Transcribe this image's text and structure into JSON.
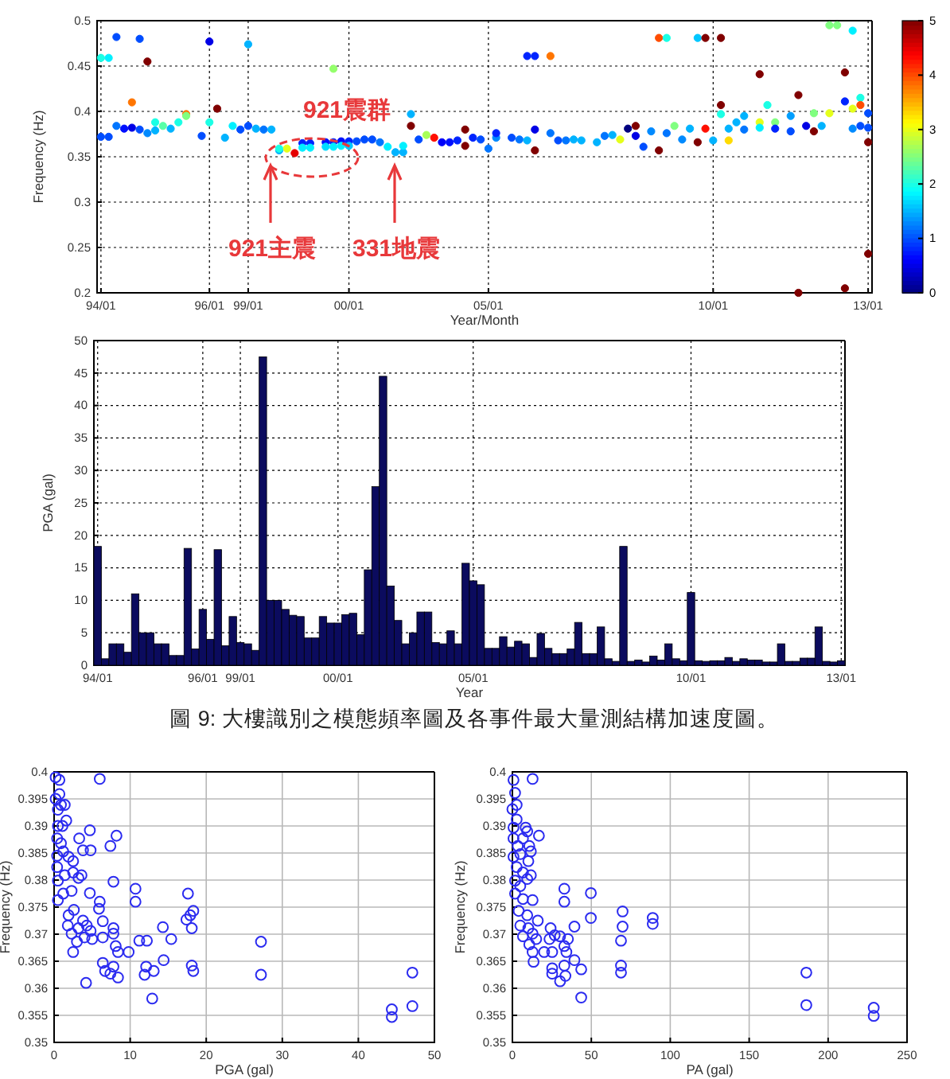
{
  "chart_data": [
    {
      "type": "scatter",
      "xlabel": "Year/Month",
      "ylabel": "Frequency (Hz)",
      "categories": [
        "94/01",
        null,
        null,
        null,
        null,
        null,
        null,
        null,
        null,
        null,
        null,
        null,
        null,
        null,
        "96/01",
        null,
        null,
        null,
        null,
        "99/01",
        null,
        null,
        null,
        null,
        null,
        null,
        null,
        null,
        null,
        null,
        null,
        null,
        "00/01",
        null,
        null,
        null,
        null,
        null,
        null,
        null,
        null,
        null,
        null,
        null,
        null,
        null,
        null,
        null,
        null,
        null,
        "05/01",
        null,
        null,
        null,
        null,
        null,
        null,
        null,
        null,
        null,
        null,
        null,
        null,
        null,
        null,
        null,
        null,
        null,
        null,
        null,
        null,
        null,
        null,
        null,
        null,
        null,
        null,
        null,
        null,
        "10/01",
        null,
        null,
        null,
        null,
        null,
        null,
        null,
        null,
        null,
        null,
        null,
        null,
        null,
        null,
        null,
        null,
        null,
        null,
        null,
        "13/01"
      ],
      "ylim": [
        0.2,
        0.5
      ],
      "yticks": [
        0.2,
        0.25,
        0.3,
        0.35,
        0.4,
        0.45,
        0.5
      ],
      "clim": [
        0,
        5
      ],
      "cticks": [
        0,
        1,
        2,
        3,
        4,
        5
      ],
      "grid": true,
      "marker": "circle",
      "series": [
        {
          "values": [
            0.459,
            0.459,
            0.384,
            0.381,
            0.382,
            0.48,
            0.376,
            0.379,
            0.384,
            0.381,
            0.388,
            0.397,
            null,
            0.373,
            0.477,
            0.403,
            0.371,
            0.384,
            0.38,
            0.384,
            0.381,
            0.38,
            0.38,
            0.357,
            0.359,
            0.354,
            0.365,
            0.365,
            null,
            0.366,
            0.366,
            0.367,
            0.367,
            0.367,
            0.369,
            0.369,
            0.366,
            0.361,
            0.355,
            0.355,
            0.384,
            0.369,
            0.374,
            0.371,
            0.366,
            0.366,
            0.368,
            0.362,
            0.371,
            0.369,
            0.359,
            0.371,
            null,
            0.371,
            0.369,
            0.461,
            0.461,
            null,
            0.461,
            0.368,
            0.368,
            0.369,
            0.368,
            null,
            0.366,
            0.373,
            0.374,
            0.369,
            0.381,
            0.384,
            0.361,
            0.378,
            0.481,
            0.376,
            0.384,
            0.369,
            0.381,
            0.481,
            0.481,
            0.368,
            0.481,
            0.368,
            0.388,
            0.38,
            null,
            0.441,
            0.407,
            0.388,
            null,
            0.378,
            0.418,
            0.384,
            0.378,
            0.384,
            0.495,
            0.495,
            0.205,
            0.403,
            0.415,
            0.243
          ],
          "cvalues": [
            2,
            1.8,
            1.2,
            0.7,
            0.5,
            1,
            1.3,
            1.5,
            2.3,
            1.5,
            2,
            3.8,
            null,
            1,
            0.5,
            5,
            1.5,
            1.8,
            1,
            1,
            1.5,
            1.2,
            1.5,
            1.5,
            3,
            4.5,
            0.8,
            0.8,
            null,
            0.7,
            0.8,
            0.7,
            0.8,
            1,
            1,
            1,
            1.2,
            1.8,
            1.5,
            1.5,
            5,
            1,
            2.7,
            4.3,
            0.6,
            0.7,
            0.8,
            5,
            0.8,
            1,
            1.2,
            1.3,
            null,
            1,
            1.2,
            0.8,
            0.8,
            null,
            3.8,
            1,
            1.2,
            1.5,
            1.5,
            null,
            1.5,
            1.2,
            1.5,
            3,
            0,
            5,
            1,
            1.3,
            4,
            1.2,
            2.5,
            1.3,
            1.5,
            1.6,
            5,
            1.5,
            5,
            3.3,
            1.5,
            1.2,
            null,
            5,
            2,
            2.5,
            null,
            1,
            5,
            0.5,
            5,
            1.5,
            2.5,
            2.5,
            5,
            3,
            2,
            5
          ],
          "colors": [
            "#1affe6",
            "#00f0ff",
            "#0075ff",
            "#000fff",
            "#0000e6",
            "#004dff",
            "#008aff",
            "#00b3ff",
            "#57ffa8",
            "#00b3ff",
            "#1affe6",
            "#ff7500",
            null,
            "#004dff",
            "#0000e6",
            "#800000",
            "#00b3ff",
            "#00f0ff",
            "#004dff",
            "#004dff",
            "#00b3ff",
            "#0075ff",
            "#00b3ff",
            "#00b3ff",
            "#e6ff1a",
            "#e60000",
            "#0024ff",
            "#0024ff",
            null,
            "#000fff",
            "#0024ff",
            "#000fff",
            "#0024ff",
            "#004dff",
            "#004dff",
            "#004dff",
            "#0075ff",
            "#00f0ff",
            "#00b3ff",
            "#00b3ff",
            "#800000",
            "#004dff",
            "#a8ff57",
            "#ff0f00",
            "#0000fa",
            "#000fff",
            "#0024ff",
            "#800000",
            "#0024ff",
            "#004dff",
            "#0075ff",
            "#008aff",
            null,
            "#004dff",
            "#0075ff",
            "#0024ff",
            "#0024ff",
            null,
            "#ff7500",
            "#004dff",
            "#0075ff",
            "#00b3ff",
            "#00b3ff",
            null,
            "#00b3ff",
            "#0075ff",
            "#00b3ff",
            "#e6ff1a",
            "#000080",
            "#800000",
            "#004dff",
            "#008aff",
            "#ff4d00",
            "#0075ff",
            "#80ff80",
            "#008aff",
            "#00b3ff",
            "#00c7ff",
            "#800000",
            "#00b3ff",
            "#800000",
            "#ffdb00",
            "#00b3ff",
            "#0075ff",
            null,
            "#800000",
            "#1affe6",
            "#80ff80",
            null,
            "#004dff",
            "#800000",
            "#0000e6",
            "#800000",
            "#00b3ff",
            "#80ff80",
            "#80ff80",
            "#800000",
            "#e6ff1a",
            "#1affe6",
            "#800000"
          ]
        },
        {
          "values": [
            0.372,
            0.372,
            0.482,
            null,
            0.41,
            0.38,
            0.455,
            0.388,
            null,
            null,
            null,
            0.395,
            null,
            null,
            0.388,
            null,
            null,
            null,
            null,
            0.474,
            null,
            null,
            null,
            0.359,
            null,
            null,
            0.36,
            0.36,
            null,
            0.361,
            0.361,
            0.362,
            0.362,
            null,
            null,
            null,
            null,
            null,
            null,
            0.362,
            0.397,
            null,
            null,
            null,
            null,
            null,
            null,
            0.38,
            null,
            null,
            null,
            0.376,
            null,
            null,
            null,
            0.368,
            0.38,
            null,
            0.376,
            null,
            null,
            null,
            null,
            null,
            null,
            null,
            null,
            null,
            null,
            0.373,
            null,
            null,
            0.357,
            0.481,
            null,
            null,
            null,
            0.366,
            0.381,
            null,
            0.407,
            0.381,
            null,
            0.395,
            null,
            0.388,
            null,
            0.381,
            null,
            0.395,
            0.2,
            null,
            0.398,
            null,
            0.398,
            null,
            0.443,
            0.489,
            0.384,
            0.398
          ],
          "cvalues": [
            1,
            1,
            1,
            null,
            3.8,
            1,
            5,
            2,
            null,
            null,
            null,
            2.5,
            null,
            null,
            2,
            null,
            null,
            null,
            null,
            1.5,
            null,
            null,
            null,
            2,
            null,
            null,
            1.8,
            1.8,
            null,
            1.7,
            1.8,
            1.8,
            1.6,
            null,
            null,
            null,
            null,
            null,
            null,
            1.8,
            1.5,
            null,
            null,
            null,
            null,
            null,
            null,
            5,
            null,
            null,
            null,
            0.8,
            null,
            null,
            null,
            1.5,
            0.5,
            null,
            1.2,
            null,
            null,
            null,
            null,
            null,
            null,
            null,
            null,
            null,
            null,
            0.5,
            null,
            null,
            5,
            2,
            null,
            null,
            null,
            5,
            4.3,
            null,
            5,
            1.5,
            null,
            1.5,
            null,
            3,
            null,
            0.8,
            null,
            1.4,
            5,
            null,
            2.5,
            null,
            3,
            null,
            5,
            1.8,
            1,
            1
          ],
          "colors": [
            "#004dff",
            "#004dff",
            "#004dff",
            null,
            "#ff7500",
            "#004dff",
            "#800000",
            "#1affe6",
            null,
            null,
            null,
            "#80ff80",
            null,
            null,
            "#1affe6",
            null,
            null,
            null,
            null,
            "#00b3ff",
            null,
            null,
            null,
            "#1affe6",
            null,
            null,
            "#00f0ff",
            "#00f0ff",
            null,
            "#00dbff",
            "#00f0ff",
            "#00f0ff",
            "#00c7ff",
            null,
            null,
            null,
            null,
            null,
            null,
            "#00f0ff",
            "#00b3ff",
            null,
            null,
            null,
            null,
            null,
            null,
            "#800000",
            null,
            null,
            null,
            "#0024ff",
            null,
            null,
            null,
            "#00b3ff",
            "#0000e6",
            null,
            "#0075ff",
            null,
            null,
            null,
            null,
            null,
            null,
            null,
            null,
            null,
            null,
            "#0000e6",
            null,
            null,
            "#800000",
            "#1affe6",
            null,
            null,
            null,
            "#800000",
            "#ff0f00",
            null,
            "#800000",
            "#00b3ff",
            null,
            "#00b3ff",
            null,
            "#e6ff1a",
            null,
            "#0024ff",
            null,
            "#009eff",
            "#800000",
            null,
            "#80ff80",
            null,
            "#e6ff1a",
            null,
            "#800000",
            "#00f0ff",
            "#004dff",
            "#004dff"
          ]
        },
        {
          "values": [
            null,
            null,
            null,
            null,
            null,
            null,
            null,
            null,
            null,
            null,
            null,
            null,
            null,
            null,
            null,
            null,
            null,
            null,
            null,
            null,
            null,
            null,
            null,
            null,
            null,
            null,
            null,
            null,
            null,
            null,
            0.447,
            null,
            null,
            null,
            null,
            null,
            null,
            null,
            null,
            null,
            null,
            null,
            null,
            null,
            null,
            null,
            null,
            null,
            null,
            null,
            null,
            null,
            null,
            null,
            null,
            null,
            0.357,
            null,
            null,
            null,
            null,
            null,
            null,
            null,
            null,
            null,
            null,
            null,
            null,
            null,
            null,
            null,
            null,
            null,
            null,
            null,
            null,
            null,
            null,
            null,
            0.397,
            null,
            null,
            null,
            null,
            0.382,
            null,
            null,
            null,
            null,
            null,
            null,
            null,
            null,
            null,
            null,
            0.411,
            0.381,
            0.407,
            0.382
          ],
          "cvalues": [
            null,
            null,
            null,
            null,
            null,
            null,
            null,
            null,
            null,
            null,
            null,
            null,
            null,
            null,
            null,
            null,
            null,
            null,
            null,
            null,
            null,
            null,
            null,
            null,
            null,
            null,
            null,
            null,
            null,
            null,
            2.6,
            null,
            null,
            null,
            null,
            null,
            null,
            null,
            null,
            null,
            null,
            null,
            null,
            null,
            null,
            null,
            null,
            null,
            null,
            null,
            null,
            null,
            null,
            null,
            null,
            null,
            5,
            null,
            null,
            null,
            null,
            null,
            null,
            null,
            null,
            null,
            null,
            null,
            null,
            null,
            null,
            null,
            null,
            null,
            null,
            null,
            null,
            null,
            null,
            null,
            2,
            null,
            null,
            null,
            null,
            1.8,
            null,
            null,
            null,
            null,
            null,
            null,
            null,
            null,
            null,
            null,
            0.8,
            1.3,
            4,
            1
          ],
          "colors": [
            null,
            null,
            null,
            null,
            null,
            null,
            null,
            null,
            null,
            null,
            null,
            null,
            null,
            null,
            null,
            null,
            null,
            null,
            null,
            null,
            null,
            null,
            null,
            null,
            null,
            null,
            null,
            null,
            null,
            null,
            "#94ff6b",
            null,
            null,
            null,
            null,
            null,
            null,
            null,
            null,
            null,
            null,
            null,
            null,
            null,
            null,
            null,
            null,
            null,
            null,
            null,
            null,
            null,
            null,
            null,
            null,
            null,
            "#800000",
            null,
            null,
            null,
            null,
            null,
            null,
            null,
            null,
            null,
            null,
            null,
            null,
            null,
            null,
            null,
            null,
            null,
            null,
            null,
            null,
            null,
            null,
            null,
            "#1affe6",
            null,
            null,
            null,
            null,
            "#00f0ff",
            null,
            null,
            null,
            null,
            null,
            null,
            null,
            null,
            null,
            null,
            "#0024ff",
            "#008aff",
            "#ff4d00",
            "#004dff"
          ]
        },
        {
          "values": [
            null,
            null,
            null,
            null,
            null,
            null,
            null,
            null,
            null,
            null,
            null,
            null,
            null,
            null,
            null,
            null,
            null,
            null,
            null,
            null,
            null,
            null,
            null,
            null,
            null,
            null,
            null,
            null,
            null,
            null,
            null,
            null,
            null,
            null,
            null,
            null,
            null,
            null,
            null,
            null,
            null,
            null,
            null,
            null,
            null,
            null,
            null,
            null,
            null,
            null,
            null,
            null,
            null,
            null,
            null,
            null,
            null,
            null,
            null,
            null,
            null,
            null,
            null,
            null,
            null,
            null,
            null,
            null,
            null,
            null,
            null,
            null,
            null,
            null,
            null,
            null,
            null,
            null,
            null,
            null,
            null,
            null,
            null,
            null,
            null,
            null,
            null,
            null,
            null,
            null,
            null,
            null,
            null,
            null,
            null,
            null,
            null,
            null,
            null,
            0.366
          ],
          "cvalues": [
            null,
            null,
            null,
            null,
            null,
            null,
            null,
            null,
            null,
            null,
            null,
            null,
            null,
            null,
            null,
            null,
            null,
            null,
            null,
            null,
            null,
            null,
            null,
            null,
            null,
            null,
            null,
            null,
            null,
            null,
            null,
            null,
            null,
            null,
            null,
            null,
            null,
            null,
            null,
            null,
            null,
            null,
            null,
            null,
            null,
            null,
            null,
            null,
            null,
            null,
            null,
            null,
            null,
            null,
            null,
            null,
            null,
            null,
            null,
            null,
            null,
            null,
            null,
            null,
            null,
            null,
            null,
            null,
            null,
            null,
            null,
            null,
            null,
            null,
            null,
            null,
            null,
            null,
            null,
            null,
            null,
            null,
            null,
            null,
            null,
            null,
            null,
            null,
            null,
            null,
            null,
            null,
            null,
            null,
            null,
            null,
            null,
            null,
            null,
            5
          ],
          "colors": [
            null,
            null,
            null,
            null,
            null,
            null,
            null,
            null,
            null,
            null,
            null,
            null,
            null,
            null,
            null,
            null,
            null,
            null,
            null,
            null,
            null,
            null,
            null,
            null,
            null,
            null,
            null,
            null,
            null,
            null,
            null,
            null,
            null,
            null,
            null,
            null,
            null,
            null,
            null,
            null,
            null,
            null,
            null,
            null,
            null,
            null,
            null,
            null,
            null,
            null,
            null,
            null,
            null,
            null,
            null,
            null,
            null,
            null,
            null,
            null,
            null,
            null,
            null,
            null,
            null,
            null,
            null,
            null,
            null,
            null,
            null,
            null,
            null,
            null,
            null,
            null,
            null,
            null,
            null,
            null,
            null,
            null,
            null,
            null,
            null,
            null,
            null,
            null,
            null,
            null,
            null,
            null,
            null,
            null,
            null,
            null,
            null,
            null,
            null,
            "#800000"
          ]
        }
      ],
      "annotations": [
        "921震群",
        "921主震",
        "331地震"
      ]
    },
    {
      "type": "bar",
      "xlabel": "Year",
      "ylabel": "PGA (gal)",
      "color": "#0b0b5e",
      "categories": [
        "94/01",
        null,
        null,
        null,
        null,
        null,
        null,
        null,
        null,
        null,
        null,
        null,
        null,
        null,
        "96/01",
        null,
        null,
        null,
        null,
        "99/01",
        null,
        null,
        null,
        null,
        null,
        null,
        null,
        null,
        null,
        null,
        null,
        null,
        "00/01",
        null,
        null,
        null,
        null,
        null,
        null,
        null,
        null,
        null,
        null,
        null,
        null,
        null,
        null,
        null,
        null,
        null,
        "05/01",
        null,
        null,
        null,
        null,
        null,
        null,
        null,
        null,
        null,
        null,
        null,
        null,
        null,
        null,
        null,
        null,
        null,
        null,
        null,
        null,
        null,
        null,
        null,
        null,
        null,
        null,
        null,
        null,
        "10/01",
        null,
        null,
        null,
        null,
        null,
        null,
        null,
        null,
        null,
        null,
        null,
        null,
        null,
        null,
        null,
        null,
        null,
        null,
        null,
        "13/01"
      ],
      "ylim": [
        0,
        50
      ],
      "yticks": [
        0,
        5,
        10,
        15,
        20,
        25,
        30,
        35,
        40,
        45,
        50
      ],
      "grid": true,
      "values": [
        18.3,
        1,
        3.3,
        3.3,
        2,
        11,
        5,
        5,
        3.3,
        3.3,
        1.5,
        1.5,
        18,
        2.5,
        8.6,
        4,
        17.8,
        3,
        7.5,
        3.5,
        3.3,
        2.3,
        47.5,
        10,
        10,
        8.6,
        7.7,
        7.5,
        4.2,
        4.2,
        7.5,
        6.5,
        6.5,
        7.8,
        8,
        4.7,
        14.7,
        27.5,
        44.5,
        12.2,
        6.9,
        3.3,
        5,
        8.2,
        8.2,
        3.5,
        3.3,
        5.3,
        3.3,
        15.7,
        13,
        12.4,
        2.6,
        2.6,
        4.4,
        2.8,
        3.7,
        3.3,
        1.2,
        4.9,
        2.6,
        1.8,
        1.8,
        2.5,
        6.6,
        1.8,
        1.8,
        5.9,
        1,
        0.6,
        18.3,
        0.6,
        0.8,
        0.5,
        1.4,
        0.8,
        3.3,
        1,
        0.7,
        11.2,
        0.7,
        0.6,
        0.7,
        0.7,
        1.2,
        0.6,
        1,
        0.8,
        0.8,
        0.5,
        0.5,
        3.3,
        0.6,
        0.6,
        1.1,
        1.1,
        5.9,
        0.6,
        0.5,
        0.7
      ],
      "annotations": [
        "圖 9: 大樓識別之模態頻率圖及各事件最大量測結構加速度圖。"
      ]
    },
    {
      "type": "scatter",
      "xlabel": "PGA (gal)",
      "ylabel": "Frequency (Hz)",
      "color": "#2b2bf0",
      "marker": "circle",
      "grid": true,
      "xlim": [
        0,
        50
      ],
      "xticks": [
        0,
        10,
        20,
        30,
        40,
        50
      ],
      "ylim": [
        0.35,
        0.4
      ],
      "yticks": [
        0.35,
        0.355,
        0.36,
        0.365,
        0.37,
        0.375,
        0.38,
        0.385,
        0.39,
        0.395,
        0.4
      ],
      "x": [
        0.2,
        0.7,
        6,
        0.2,
        0.7,
        0.9,
        1.4,
        0.5,
        0.5,
        1.1,
        1.6,
        0.4,
        0.9,
        0.4,
        1.2,
        1.9,
        2.5,
        3.3,
        4.7,
        4.8,
        3.8,
        7.4,
        8.2,
        0.4,
        0.5,
        1.4,
        2.5,
        3.2,
        3.6,
        0.5,
        1.2,
        2.3,
        4.7,
        7.8,
        6,
        5.9,
        10.7,
        10.7,
        1.9,
        2.6,
        1.8,
        2.3,
        3.2,
        3.8,
        4.3,
        4.8,
        4,
        3,
        2.5,
        5,
        6.4,
        6.4,
        7.8,
        7.8,
        8.1,
        8.4,
        9.8,
        6.4,
        6.7,
        7.8,
        7.4,
        8.4,
        4.2,
        11.2,
        12.2,
        12.1,
        11.9,
        13.1,
        12.9,
        14.3,
        14.4,
        15.4,
        17.4,
        17.6,
        17.9,
        18.1,
        18.1,
        18.3,
        18.3,
        27.2,
        27.2,
        44.4,
        44.4,
        47.1,
        47.1
      ],
      "values": [
        0.399,
        0.3985,
        0.3987,
        0.395,
        0.3959,
        0.3939,
        0.3939,
        0.393,
        0.39,
        0.39,
        0.391,
        0.3877,
        0.3868,
        0.3845,
        0.3853,
        0.3843,
        0.3835,
        0.3877,
        0.3892,
        0.3855,
        0.3855,
        0.3863,
        0.3882,
        0.3824,
        0.3799,
        0.3809,
        0.3814,
        0.3804,
        0.3809,
        0.3763,
        0.3775,
        0.378,
        0.3776,
        0.3797,
        0.376,
        0.3747,
        0.3784,
        0.376,
        0.3735,
        0.3745,
        0.3716,
        0.3701,
        0.3711,
        0.3725,
        0.3716,
        0.3706,
        0.3694,
        0.3686,
        0.3667,
        0.3691,
        0.3724,
        0.3694,
        0.3711,
        0.3701,
        0.3678,
        0.3667,
        0.3667,
        0.3647,
        0.3632,
        0.364,
        0.3627,
        0.362,
        0.361,
        0.3688,
        0.3688,
        0.364,
        0.3625,
        0.3632,
        0.3581,
        0.3713,
        0.3652,
        0.3691,
        0.3727,
        0.3775,
        0.3735,
        0.3711,
        0.3642,
        0.3632,
        0.3743,
        0.3686,
        0.3625,
        0.3561,
        0.3547,
        0.3629,
        0.3567
      ]
    },
    {
      "type": "scatter",
      "xlabel": "PA (gal)",
      "ylabel": "Frequency (Hz)",
      "color": "#2b2bf0",
      "marker": "circle",
      "grid": true,
      "xlim": [
        0,
        250
      ],
      "xticks": [
        0,
        50,
        100,
        150,
        200,
        250
      ],
      "ylim": [
        0.35,
        0.4
      ],
      "yticks": [
        0.35,
        0.355,
        0.36,
        0.365,
        0.37,
        0.375,
        0.38,
        0.385,
        0.39,
        0.395,
        0.4
      ],
      "x": [
        0.7,
        12.8,
        1.7,
        2.7,
        0,
        2.7,
        0.7,
        8.4,
        9.4,
        16.8,
        0.7,
        3.4,
        6.7,
        10.7,
        11.7,
        0.7,
        5,
        10.1,
        2.7,
        6.7,
        11.7,
        9.4,
        1.7,
        5,
        32.9,
        32.9,
        49.7,
        49.7,
        1.7,
        6.7,
        12.8,
        4,
        9.4,
        16.1,
        5,
        10.1,
        12.8,
        6.7,
        15.1,
        10.7,
        12.8,
        13.4,
        20.1,
        23.5,
        24.2,
        26.8,
        30.2,
        32.9,
        34.2,
        35.2,
        39.3,
        39.3,
        25.2,
        25.2,
        25.2,
        32.9,
        33.6,
        30.2,
        43.6,
        43.6,
        69.8,
        69.8,
        68.8,
        68.8,
        68.8,
        88.9,
        88.9,
        186.2,
        186.2,
        228.9,
        228.9
      ],
      "values": [
        0.3985,
        0.3987,
        0.3961,
        0.3939,
        0.3931,
        0.3912,
        0.3897,
        0.3897,
        0.389,
        0.3882,
        0.3877,
        0.3863,
        0.3877,
        0.3863,
        0.3853,
        0.3843,
        0.3848,
        0.3835,
        0.3824,
        0.3814,
        0.3809,
        0.3802,
        0.3799,
        0.3789,
        0.3784,
        0.376,
        0.3776,
        0.373,
        0.3775,
        0.3765,
        0.3763,
        0.3743,
        0.3735,
        0.3725,
        0.3716,
        0.3711,
        0.3701,
        0.3696,
        0.3691,
        0.3681,
        0.3667,
        0.3649,
        0.3667,
        0.3691,
        0.3711,
        0.3698,
        0.3696,
        0.3678,
        0.3667,
        0.3691,
        0.3714,
        0.3652,
        0.3667,
        0.3637,
        0.3627,
        0.3642,
        0.3623,
        0.3613,
        0.3635,
        0.3583,
        0.3742,
        0.3714,
        0.3688,
        0.3642,
        0.3629,
        0.373,
        0.3719,
        0.3629,
        0.3569,
        0.3564,
        0.3549
      ]
    }
  ]
}
